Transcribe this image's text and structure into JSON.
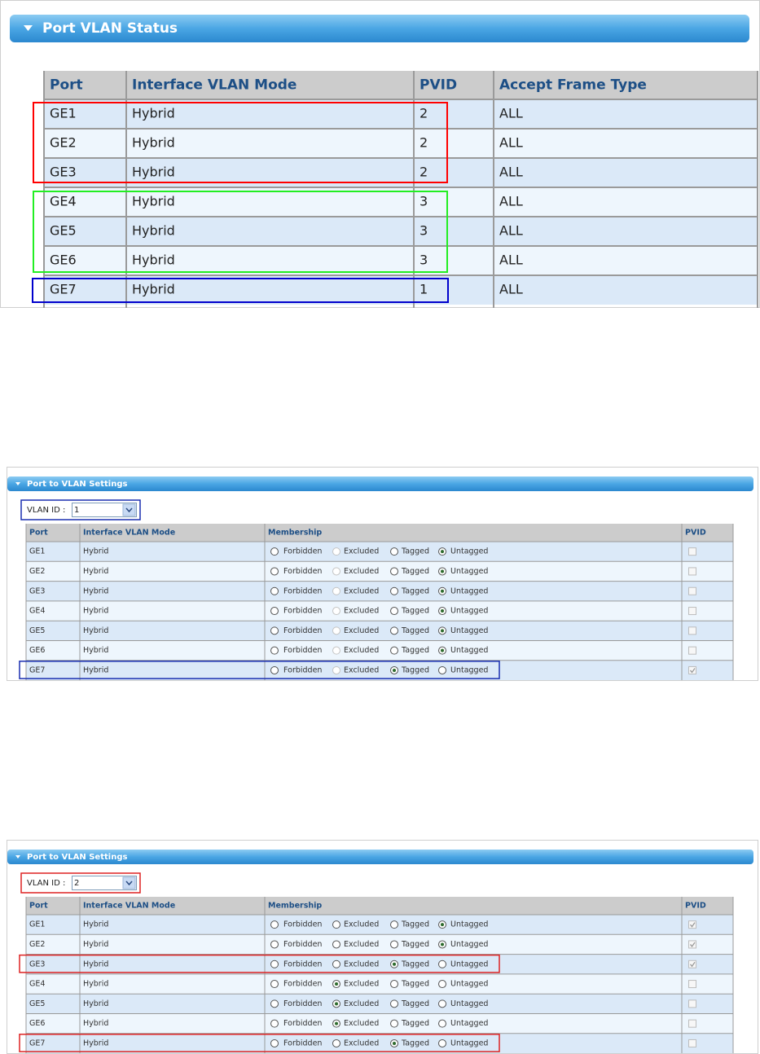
{
  "panels": [
    {
      "title": "Port VLAN Status",
      "columns": [
        "Port",
        "Interface VLAN Mode",
        "PVID",
        "Accept Frame Type"
      ],
      "rows": [
        [
          "GE1",
          "Hybrid",
          2,
          "ALL"
        ],
        [
          "GE2",
          "Hybrid",
          2,
          "ALL"
        ],
        [
          "GE3",
          "Hybrid",
          2,
          "ALL"
        ],
        [
          "GE4",
          "Hybrid",
          3,
          "ALL"
        ],
        [
          "GE5",
          "Hybrid",
          3,
          "ALL"
        ],
        [
          "GE6",
          "Hybrid",
          3,
          "ALL"
        ],
        [
          "GE7",
          "Hybrid",
          1,
          "ALL"
        ]
      ]
    },
    {
      "title": "Port to VLAN Settings",
      "vlan_label": "VLAN ID :",
      "vlan_id": "1",
      "columns": [
        "Port",
        "Interface VLAN Mode",
        "Membership",
        "PVID"
      ],
      "options": [
        "Forbidden",
        "Excluded",
        "Tagged",
        "Untagged"
      ],
      "excluded_disabled": true,
      "rows": [
        {
          "port": "GE1",
          "mode": "Hybrid",
          "selected": 3,
          "pvid": false
        },
        {
          "port": "GE2",
          "mode": "Hybrid",
          "selected": 3,
          "pvid": false
        },
        {
          "port": "GE3",
          "mode": "Hybrid",
          "selected": 3,
          "pvid": false
        },
        {
          "port": "GE4",
          "mode": "Hybrid",
          "selected": 3,
          "pvid": false
        },
        {
          "port": "GE5",
          "mode": "Hybrid",
          "selected": 3,
          "pvid": false
        },
        {
          "port": "GE6",
          "mode": "Hybrid",
          "selected": 3,
          "pvid": false
        },
        {
          "port": "GE7",
          "mode": "Hybrid",
          "selected": 2,
          "pvid": true
        }
      ]
    },
    {
      "title": "Port to VLAN Settings",
      "vlan_label": "VLAN ID :",
      "vlan_id": "2",
      "columns": [
        "Port",
        "Interface VLAN Mode",
        "Membership",
        "PVID"
      ],
      "options": [
        "Forbidden",
        "Excluded",
        "Tagged",
        "Untagged"
      ],
      "excluded_disabled": false,
      "rows": [
        {
          "port": "GE1",
          "mode": "Hybrid",
          "selected": 3,
          "pvid": true
        },
        {
          "port": "GE2",
          "mode": "Hybrid",
          "selected": 3,
          "pvid": true
        },
        {
          "port": "GE3",
          "mode": "Hybrid",
          "selected": 2,
          "pvid": true
        },
        {
          "port": "GE4",
          "mode": "Hybrid",
          "selected": 1,
          "pvid": false
        },
        {
          "port": "GE5",
          "mode": "Hybrid",
          "selected": 1,
          "pvid": false
        },
        {
          "port": "GE6",
          "mode": "Hybrid",
          "selected": 1,
          "pvid": false
        },
        {
          "port": "GE7",
          "mode": "Hybrid",
          "selected": 2,
          "pvid": false
        }
      ]
    }
  ]
}
